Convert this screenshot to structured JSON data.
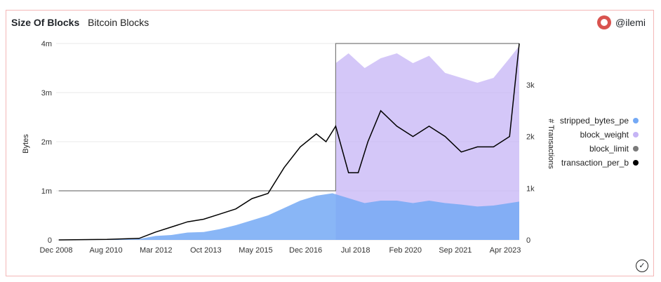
{
  "header": {
    "title": "Size Of Blocks",
    "subtitle": "Bitcoin Blocks"
  },
  "author": {
    "handle": "@ilemi"
  },
  "chart_data": {
    "type": "area",
    "x_categories": [
      "Dec 2008",
      "Aug 2010",
      "Mar 2012",
      "Oct 2013",
      "May 2015",
      "Dec 2016",
      "Jul 2018",
      "Feb 2020",
      "Sep 2021",
      "Apr 2023"
    ],
    "left_axis": {
      "label": "Bytes",
      "ticks": [
        "0",
        "1m",
        "2m",
        "3m",
        "4m"
      ],
      "ylim": [
        0,
        4000000
      ]
    },
    "right_axis": {
      "label": "# Transactions",
      "ticks": [
        "0",
        "1k",
        "2k",
        "3k"
      ],
      "ylim": [
        0,
        3800
      ]
    },
    "series": [
      {
        "name": "stripped_bytes_pe",
        "color": "#74a9f5",
        "axis": "left",
        "x": [
          2009.0,
          2010.5,
          2011.5,
          2012.0,
          2012.5,
          2013.0,
          2013.5,
          2014.0,
          2014.5,
          2015.0,
          2015.5,
          2016.0,
          2016.5,
          2017.0,
          2017.5,
          2018.0,
          2018.5,
          2019.0,
          2019.5,
          2020.0,
          2020.5,
          2021.0,
          2021.5,
          2022.0,
          2022.5,
          2023.0,
          2023.3
        ],
        "values": [
          0,
          5000,
          20000,
          80000,
          100000,
          150000,
          160000,
          220000,
          300000,
          400000,
          500000,
          650000,
          800000,
          900000,
          950000,
          850000,
          750000,
          800000,
          800000,
          750000,
          800000,
          750000,
          720000,
          680000,
          700000,
          750000,
          780000
        ]
      },
      {
        "name": "block_weight",
        "color": "#c5b4f5",
        "axis": "left",
        "x": [
          2017.6,
          2018.0,
          2018.5,
          2019.0,
          2019.5,
          2020.0,
          2020.5,
          2021.0,
          2021.5,
          2022.0,
          2022.5,
          2023.0,
          2023.3
        ],
        "values": [
          3600000,
          3800000,
          3500000,
          3700000,
          3800000,
          3600000,
          3750000,
          3400000,
          3300000,
          3200000,
          3300000,
          3700000,
          3950000
        ]
      },
      {
        "name": "block_limit",
        "color": "#7a7a7a",
        "axis": "left",
        "x": [
          2009.0,
          2017.6,
          2017.6,
          2023.3
        ],
        "values": [
          1000000,
          1000000,
          4000000,
          4000000
        ]
      },
      {
        "name": "transaction_per_b",
        "color": "#000000",
        "axis": "right",
        "x": [
          2009.0,
          2010.5,
          2011.5,
          2012.0,
          2012.5,
          2013.0,
          2013.5,
          2014.0,
          2014.5,
          2015.0,
          2015.5,
          2016.0,
          2016.5,
          2017.0,
          2017.3,
          2017.6,
          2018.0,
          2018.3,
          2018.6,
          2019.0,
          2019.5,
          2020.0,
          2020.5,
          2021.0,
          2021.5,
          2022.0,
          2022.5,
          2023.0,
          2023.3
        ],
        "values": [
          0,
          10,
          30,
          150,
          250,
          350,
          400,
          500,
          600,
          800,
          900,
          1400,
          1800,
          2050,
          1900,
          2200,
          1300,
          1300,
          1900,
          2500,
          2200,
          2000,
          2200,
          2000,
          1700,
          1800,
          1800,
          2000,
          3800
        ]
      }
    ],
    "legend": {
      "placement": "right"
    }
  }
}
